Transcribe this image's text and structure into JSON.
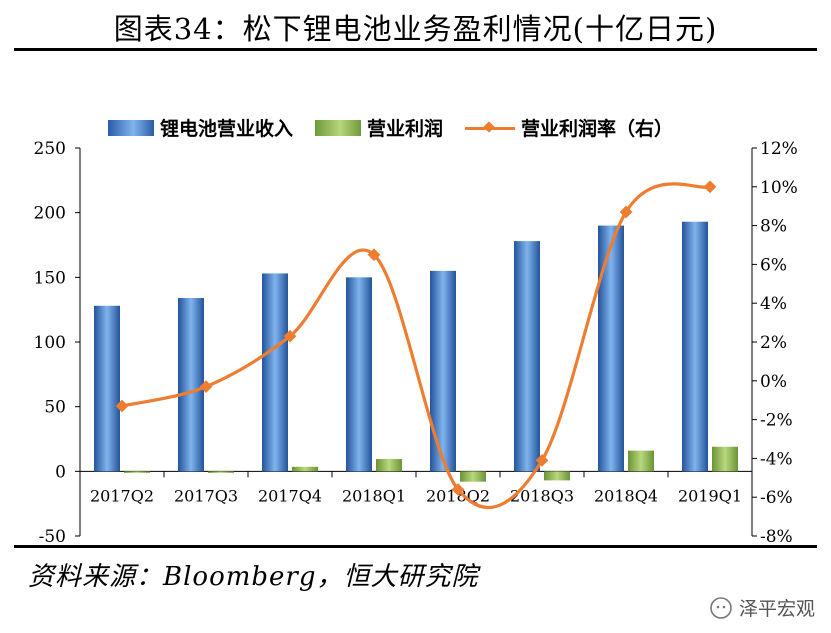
{
  "title": "图表34：松下锂电池业务盈利情况(十亿日元)",
  "source": "资料来源：Bloomberg，恒大研究院",
  "watermark": "泽平宏观",
  "colors": {
    "revenue": "#2e6bc0",
    "profit": "#92bf52",
    "margin": "#ed7d31"
  },
  "chart_data": {
    "type": "bar",
    "categories": [
      "2017Q2",
      "2017Q3",
      "2017Q4",
      "2018Q1",
      "2018Q2",
      "2018Q3",
      "2018Q4",
      "2019Q1"
    ],
    "series": [
      {
        "name": "锂电池营业收入",
        "type": "bar",
        "axis": "left",
        "values": [
          128,
          134,
          153,
          150,
          155,
          178,
          190,
          193
        ]
      },
      {
        "name": "营业利润",
        "type": "bar",
        "axis": "left",
        "values": [
          -1,
          0,
          3.5,
          9.5,
          -8,
          -7,
          16,
          19
        ]
      },
      {
        "name": "营业利润率（右）",
        "type": "line",
        "axis": "right",
        "values": [
          -1.3,
          -0.3,
          2.3,
          6.5,
          -5.6,
          -4.1,
          8.7,
          10.0
        ]
      }
    ],
    "y_left": {
      "ylim": [
        -50,
        250
      ],
      "ticks": [
        -50,
        0,
        50,
        100,
        150,
        200,
        250
      ]
    },
    "y_right": {
      "ylim": [
        -8,
        12
      ],
      "ticks": [
        "-8%",
        "-6%",
        "-4%",
        "-2%",
        "0%",
        "2%",
        "4%",
        "6%",
        "8%",
        "10%",
        "12%"
      ]
    },
    "legend": "top",
    "grid": false
  }
}
